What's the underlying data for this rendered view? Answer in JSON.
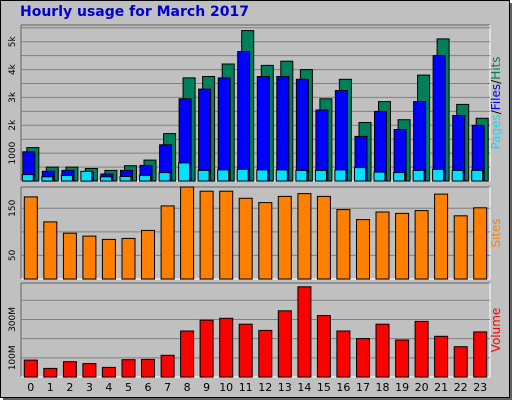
{
  "colors": {
    "hits": "#00805a",
    "files": "#0000ff",
    "pages": "#00e0ff",
    "sites": "#ff8000",
    "volume": "#ff0000",
    "title": "#0000d0"
  },
  "chart_data": [
    {
      "type": "bar",
      "title": "Hourly usage for March 2017",
      "categories": [
        "0",
        "1",
        "2",
        "3",
        "4",
        "5",
        "6",
        "7",
        "8",
        "9",
        "10",
        "11",
        "12",
        "13",
        "14",
        "15",
        "16",
        "17",
        "18",
        "19",
        "20",
        "21",
        "22",
        "23"
      ],
      "ylim": [
        0,
        5600
      ],
      "yticks": [
        1000,
        2000,
        3000,
        4000,
        5000
      ],
      "ytick_labels": [
        "1000",
        "2k",
        "3k",
        "4k",
        "5k"
      ],
      "grid": true,
      "side_label_parts": [
        "Pages",
        "/",
        "Files",
        "/",
        "Hits"
      ],
      "series": [
        {
          "name": "Hits",
          "values": [
            1200,
            500,
            500,
            450,
            380,
            550,
            750,
            1700,
            3700,
            3750,
            4200,
            5400,
            4150,
            4300,
            4000,
            2950,
            3650,
            2100,
            2850,
            2200,
            3800,
            5100,
            2750,
            2250
          ]
        },
        {
          "name": "Files",
          "values": [
            1050,
            350,
            380,
            320,
            250,
            380,
            560,
            1300,
            2950,
            3300,
            3700,
            4650,
            3750,
            3750,
            3650,
            2550,
            3250,
            1600,
            2500,
            1850,
            2850,
            4500,
            2350,
            2000
          ]
        },
        {
          "name": "Pages",
          "values": [
            230,
            150,
            200,
            350,
            150,
            160,
            200,
            300,
            650,
            380,
            400,
            420,
            400,
            400,
            380,
            380,
            400,
            480,
            320,
            300,
            380,
            420,
            380,
            380
          ]
        }
      ]
    },
    {
      "type": "bar",
      "categories": [
        "0",
        "1",
        "2",
        "3",
        "4",
        "5",
        "6",
        "7",
        "8",
        "9",
        "10",
        "11",
        "12",
        "13",
        "14",
        "15",
        "16",
        "17",
        "18",
        "19",
        "20",
        "21",
        "22",
        "23"
      ],
      "ylim": [
        0,
        195
      ],
      "yticks": [
        50,
        150
      ],
      "ytick_labels": [
        "50",
        "150"
      ],
      "grid": true,
      "side_label_parts": [
        "Sites"
      ],
      "series": [
        {
          "name": "Sites",
          "values": [
            174,
            121,
            97,
            91,
            84,
            86,
            103,
            155,
            195,
            186,
            186,
            171,
            162,
            175,
            181,
            175,
            147,
            126,
            142,
            139,
            145,
            180,
            134,
            151
          ]
        }
      ]
    },
    {
      "type": "bar",
      "categories": [
        "0",
        "1",
        "2",
        "3",
        "4",
        "5",
        "6",
        "7",
        "8",
        "9",
        "10",
        "11",
        "12",
        "13",
        "14",
        "15",
        "16",
        "17",
        "18",
        "19",
        "20",
        "21",
        "22",
        "23"
      ],
      "ylim": [
        0,
        490
      ],
      "yticks": [
        100,
        300
      ],
      "ytick_labels": [
        "100M",
        "300M"
      ],
      "grid": true,
      "side_label_parts": [
        "Volume"
      ],
      "series": [
        {
          "name": "Volume",
          "values": [
            88,
            45,
            80,
            70,
            50,
            90,
            92,
            113,
            240,
            296,
            306,
            275,
            243,
            345,
            470,
            320,
            240,
            200,
            275,
            193,
            290,
            212,
            158,
            235
          ]
        }
      ]
    }
  ]
}
